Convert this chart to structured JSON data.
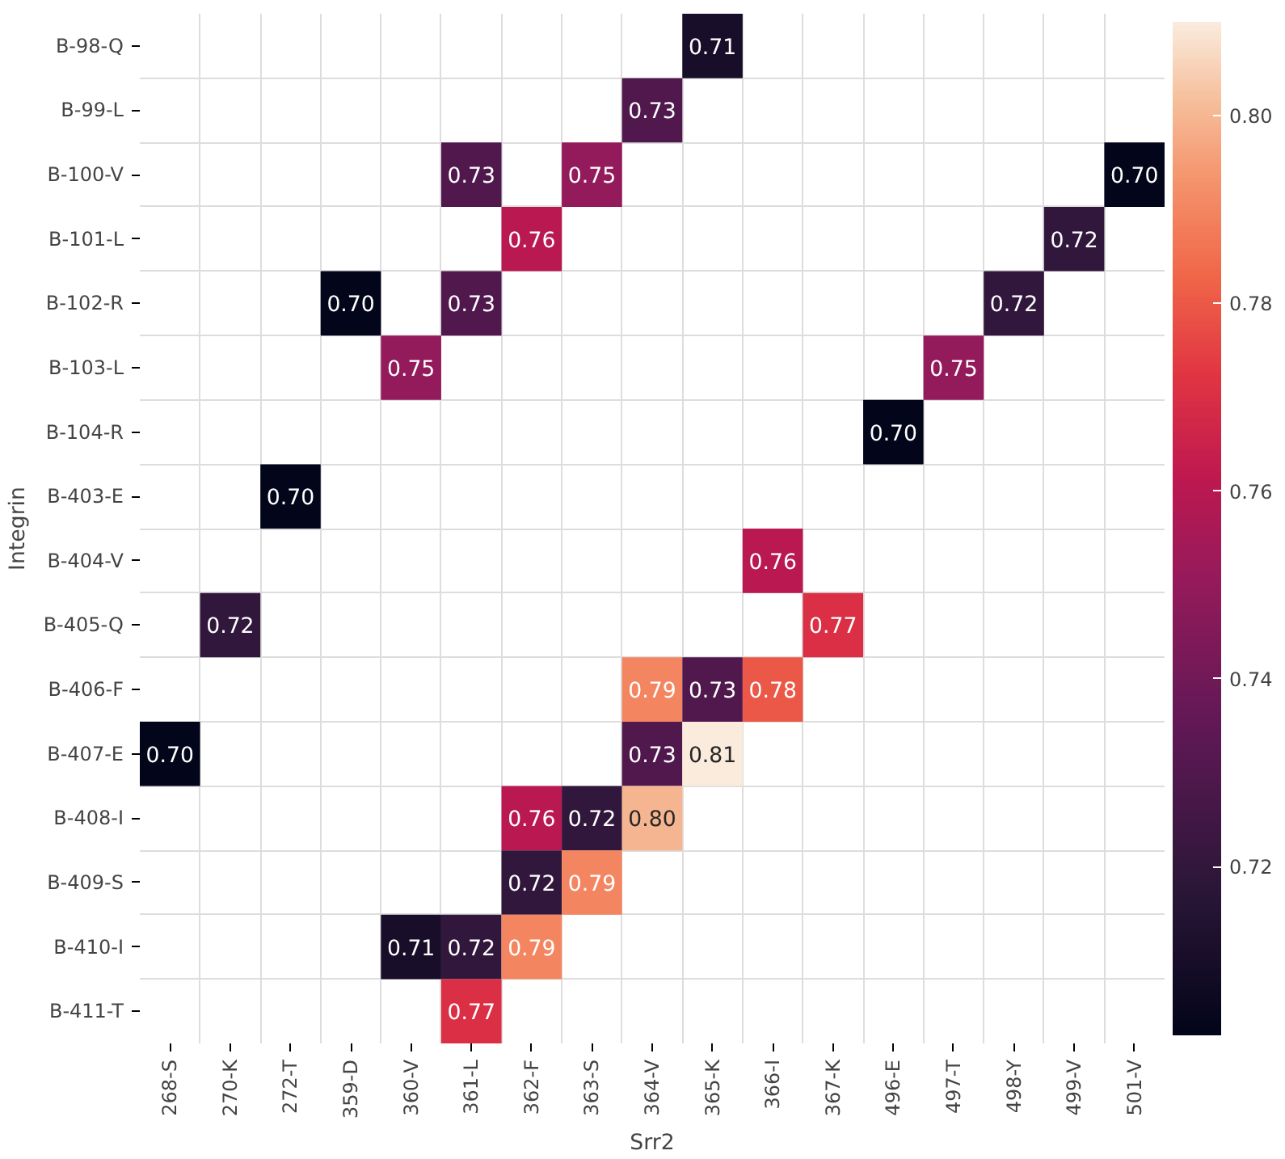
{
  "chart_data": {
    "type": "heatmap",
    "xlabel": "Srr2",
    "ylabel": "Integrin",
    "categories": [
      "268-S",
      "270-K",
      "272-T",
      "359-D",
      "360-V",
      "361-L",
      "362-F",
      "363-S",
      "364-V",
      "365-K",
      "366-I",
      "367-K",
      "496-E",
      "497-T",
      "498-Y",
      "499-V",
      "501-V"
    ],
    "y_categories": [
      "B-98-Q",
      "B-99-L",
      "B-100-V",
      "B-101-L",
      "B-102-R",
      "B-103-L",
      "B-104-R",
      "B-403-E",
      "B-404-V",
      "B-405-Q",
      "B-406-F",
      "B-407-E",
      "B-408-I",
      "B-409-S",
      "B-410-I",
      "B-411-T"
    ],
    "cells": [
      [
        null,
        null,
        null,
        null,
        null,
        null,
        null,
        null,
        null,
        0.71,
        null,
        null,
        null,
        null,
        null,
        null,
        null
      ],
      [
        null,
        null,
        null,
        null,
        null,
        null,
        null,
        null,
        0.73,
        null,
        null,
        null,
        null,
        null,
        null,
        null,
        null
      ],
      [
        null,
        null,
        null,
        null,
        null,
        0.73,
        null,
        0.75,
        null,
        null,
        null,
        null,
        null,
        null,
        null,
        null,
        0.7
      ],
      [
        null,
        null,
        null,
        null,
        null,
        null,
        0.76,
        null,
        null,
        null,
        null,
        null,
        null,
        null,
        null,
        0.72,
        null
      ],
      [
        null,
        null,
        null,
        0.7,
        null,
        0.73,
        null,
        null,
        null,
        null,
        null,
        null,
        null,
        null,
        0.72,
        null,
        null
      ],
      [
        null,
        null,
        null,
        null,
        0.75,
        null,
        null,
        null,
        null,
        null,
        null,
        null,
        null,
        0.75,
        null,
        null,
        null
      ],
      [
        null,
        null,
        null,
        null,
        null,
        null,
        null,
        null,
        null,
        null,
        null,
        null,
        0.7,
        null,
        null,
        null,
        null
      ],
      [
        null,
        null,
        0.7,
        null,
        null,
        null,
        null,
        null,
        null,
        null,
        null,
        null,
        null,
        null,
        null,
        null,
        null
      ],
      [
        null,
        null,
        null,
        null,
        null,
        null,
        null,
        null,
        null,
        null,
        0.76,
        null,
        null,
        null,
        null,
        null,
        null
      ],
      [
        null,
        0.72,
        null,
        null,
        null,
        null,
        null,
        null,
        null,
        null,
        null,
        0.77,
        null,
        null,
        null,
        null,
        null
      ],
      [
        null,
        null,
        null,
        null,
        null,
        null,
        null,
        null,
        0.79,
        0.73,
        0.78,
        null,
        null,
        null,
        null,
        null,
        null
      ],
      [
        0.7,
        null,
        null,
        null,
        null,
        null,
        null,
        null,
        0.73,
        0.81,
        null,
        null,
        null,
        null,
        null,
        null,
        null
      ],
      [
        null,
        null,
        null,
        null,
        null,
        null,
        0.76,
        0.72,
        0.8,
        null,
        null,
        null,
        null,
        null,
        null,
        null,
        null
      ],
      [
        null,
        null,
        null,
        null,
        null,
        null,
        0.72,
        0.79,
        null,
        null,
        null,
        null,
        null,
        null,
        null,
        null,
        null
      ],
      [
        null,
        null,
        null,
        null,
        0.71,
        0.72,
        0.79,
        null,
        null,
        null,
        null,
        null,
        null,
        null,
        null,
        null,
        null
      ],
      [
        null,
        null,
        null,
        null,
        null,
        0.77,
        null,
        null,
        null,
        null,
        null,
        null,
        null,
        null,
        null,
        null,
        null
      ]
    ],
    "cell_labels": [
      [
        null,
        null,
        null,
        null,
        null,
        null,
        null,
        null,
        null,
        "0.71",
        null,
        null,
        null,
        null,
        null,
        null,
        null
      ],
      [
        null,
        null,
        null,
        null,
        null,
        null,
        null,
        null,
        "0.73",
        null,
        null,
        null,
        null,
        null,
        null,
        null,
        null
      ],
      [
        null,
        null,
        null,
        null,
        null,
        "0.73",
        null,
        "0.75",
        null,
        null,
        null,
        null,
        null,
        null,
        null,
        null,
        "0.70"
      ],
      [
        null,
        null,
        null,
        null,
        null,
        null,
        "0.76",
        null,
        null,
        null,
        null,
        null,
        null,
        null,
        null,
        "0.72",
        null
      ],
      [
        null,
        null,
        null,
        "0.70",
        null,
        "0.73",
        null,
        null,
        null,
        null,
        null,
        null,
        null,
        null,
        "0.72",
        null,
        null
      ],
      [
        null,
        null,
        null,
        null,
        "0.75",
        null,
        null,
        null,
        null,
        null,
        null,
        null,
        null,
        "0.75",
        null,
        null,
        null
      ],
      [
        null,
        null,
        null,
        null,
        null,
        null,
        null,
        null,
        null,
        null,
        null,
        null,
        "0.70",
        null,
        null,
        null,
        null
      ],
      [
        null,
        null,
        "0.70",
        null,
        null,
        null,
        null,
        null,
        null,
        null,
        null,
        null,
        null,
        null,
        null,
        null,
        null
      ],
      [
        null,
        null,
        null,
        null,
        null,
        null,
        null,
        null,
        null,
        null,
        "0.76",
        null,
        null,
        null,
        null,
        null,
        null
      ],
      [
        null,
        "0.72",
        null,
        null,
        null,
        null,
        null,
        null,
        null,
        null,
        null,
        "0.77",
        null,
        null,
        null,
        null,
        null
      ],
      [
        null,
        null,
        null,
        null,
        null,
        null,
        null,
        null,
        "0.79",
        "0.73",
        "0.78",
        null,
        null,
        null,
        null,
        null,
        null
      ],
      [
        "0.70",
        null,
        null,
        null,
        null,
        null,
        null,
        null,
        "0.73",
        "0.81",
        null,
        null,
        null,
        null,
        null,
        null,
        null
      ],
      [
        null,
        null,
        null,
        null,
        null,
        null,
        "0.76",
        "0.72",
        "0.80",
        null,
        null,
        null,
        null,
        null,
        null,
        null,
        null
      ],
      [
        null,
        null,
        null,
        null,
        null,
        null,
        "0.72",
        "0.79",
        null,
        null,
        null,
        null,
        null,
        null,
        null,
        null,
        null
      ],
      [
        null,
        null,
        null,
        null,
        "0.71",
        "0.72",
        "0.79",
        null,
        null,
        null,
        null,
        null,
        null,
        null,
        null,
        null,
        null
      ],
      [
        null,
        null,
        null,
        null,
        null,
        "0.77",
        null,
        null,
        null,
        null,
        null,
        null,
        null,
        null,
        null,
        null,
        null
      ]
    ],
    "clim": [
      0.702,
      0.81
    ],
    "cticks": [
      0.72,
      0.74,
      0.76,
      0.78,
      {
        "value": 0.8,
        "label": "0.80"
      }
    ],
    "data_labels": true,
    "grid": true
  }
}
